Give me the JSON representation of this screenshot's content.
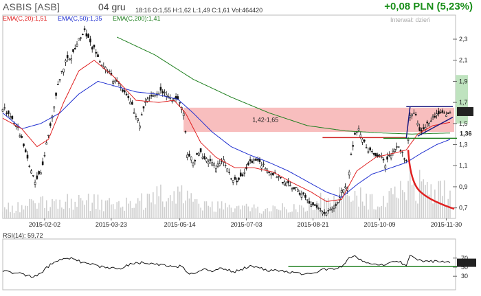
{
  "header": {
    "title": "ASBIS [ASB]",
    "date": "04 gru",
    "quote_line": "18:16  O:1,55  H:1,62  L:1,49  C:1,61  Vol:464420",
    "change": "+0,08 PLN (5,23%)",
    "interval": "Interwał: dzień"
  },
  "indicators": {
    "ema20": "EMA(C,20):1,51",
    "ema50": "EMA(C,50):1,35",
    "ema200": "EMA(C,200):1,41",
    "rsi": "RSI(14): 59,72"
  },
  "colors": {
    "ema20": "#e02020",
    "ema50": "#2030d0",
    "ema200": "#208020",
    "zone": "#f7b3b3",
    "candles": "#111111",
    "volume": "#cfcfcf",
    "up_change": "#1a8f1a"
  },
  "chart_data": [
    {
      "type": "candlestick",
      "price_ylim": [
        0.6,
        2.45
      ],
      "y_ticks": [
        0.7,
        0.9,
        1.1,
        1.3,
        1.5,
        1.7,
        1.9,
        2.1,
        2.3
      ],
      "y_tick_labels": [
        "0,7",
        "0,9",
        "1,1",
        "1,3",
        "1,5",
        "1,7",
        "1,9",
        "2,1",
        "2,3"
      ],
      "x_tick_labels": [
        "2015-02-02",
        "2015-03-23",
        "2015-05-14",
        "2015-07-03",
        "2015-08-21",
        "2015-10-09",
        "2015-11-30"
      ],
      "x_range_index": [
        0,
        235
      ],
      "x_tick_index": [
        22,
        57,
        93,
        128,
        163,
        198,
        233
      ],
      "close_anchors": [
        [
          0,
          1.65
        ],
        [
          3,
          1.6
        ],
        [
          8,
          1.45
        ],
        [
          12,
          1.25
        ],
        [
          15,
          1.05
        ],
        [
          17,
          0.95
        ],
        [
          20,
          1.05
        ],
        [
          23,
          1.3
        ],
        [
          26,
          1.55
        ],
        [
          29,
          1.85
        ],
        [
          31,
          1.98
        ],
        [
          33,
          2.1
        ],
        [
          36,
          2.12
        ],
        [
          39,
          2.25
        ],
        [
          41,
          2.32
        ],
        [
          43,
          2.38
        ],
        [
          46,
          2.25
        ],
        [
          49,
          2.18
        ],
        [
          52,
          2.05
        ],
        [
          55,
          2.0
        ],
        [
          58,
          1.92
        ],
        [
          61,
          1.88
        ],
        [
          64,
          1.8
        ],
        [
          67,
          1.72
        ],
        [
          70,
          1.55
        ],
        [
          72,
          1.5
        ],
        [
          74,
          1.65
        ],
        [
          78,
          1.78
        ],
        [
          82,
          1.8
        ],
        [
          86,
          1.78
        ],
        [
          89,
          1.72
        ],
        [
          91,
          1.75
        ],
        [
          93,
          1.7
        ],
        [
          95,
          1.6
        ],
        [
          97,
          1.2
        ],
        [
          100,
          1.15
        ],
        [
          104,
          1.22
        ],
        [
          108,
          1.15
        ],
        [
          112,
          1.08
        ],
        [
          116,
          1.15
        ],
        [
          120,
          1.0
        ],
        [
          123,
          0.95
        ],
        [
          127,
          1.05
        ],
        [
          130,
          1.12
        ],
        [
          134,
          1.15
        ],
        [
          138,
          1.08
        ],
        [
          142,
          1.02
        ],
        [
          146,
          0.98
        ],
        [
          150,
          0.92
        ],
        [
          154,
          0.88
        ],
        [
          158,
          0.82
        ],
        [
          162,
          0.74
        ],
        [
          166,
          0.68
        ],
        [
          169,
          0.64
        ],
        [
          172,
          0.68
        ],
        [
          175,
          0.72
        ],
        [
          178,
          0.85
        ],
        [
          181,
          0.9
        ],
        [
          183,
          1.2
        ],
        [
          185,
          1.38
        ],
        [
          187,
          1.45
        ],
        [
          189,
          1.35
        ],
        [
          192,
          1.25
        ],
        [
          195,
          1.2
        ],
        [
          198,
          1.18
        ],
        [
          201,
          1.12
        ],
        [
          204,
          1.2
        ],
        [
          207,
          1.28
        ],
        [
          210,
          1.22
        ],
        [
          212,
          1.15
        ],
        [
          214,
          1.58
        ],
        [
          216,
          1.62
        ],
        [
          218,
          1.5
        ],
        [
          220,
          1.4
        ],
        [
          222,
          1.48
        ],
        [
          225,
          1.55
        ],
        [
          228,
          1.58
        ],
        [
          231,
          1.6
        ],
        [
          233,
          1.58
        ],
        [
          235,
          1.61
        ]
      ],
      "ema20_anchors": [
        [
          0,
          1.55
        ],
        [
          10,
          1.45
        ],
        [
          18,
          1.28
        ],
        [
          24,
          1.35
        ],
        [
          32,
          1.7
        ],
        [
          40,
          2.0
        ],
        [
          48,
          2.1
        ],
        [
          58,
          1.95
        ],
        [
          70,
          1.72
        ],
        [
          82,
          1.7
        ],
        [
          90,
          1.72
        ],
        [
          96,
          1.6
        ],
        [
          104,
          1.32
        ],
        [
          112,
          1.18
        ],
        [
          122,
          1.08
        ],
        [
          132,
          1.08
        ],
        [
          142,
          1.04
        ],
        [
          152,
          0.94
        ],
        [
          162,
          0.85
        ],
        [
          170,
          0.76
        ],
        [
          178,
          0.78
        ],
        [
          186,
          1.05
        ],
        [
          196,
          1.18
        ],
        [
          206,
          1.22
        ],
        [
          212,
          1.25
        ],
        [
          218,
          1.4
        ],
        [
          226,
          1.48
        ],
        [
          235,
          1.51
        ]
      ],
      "ema50_anchors": [
        [
          0,
          1.6
        ],
        [
          10,
          1.45
        ],
        [
          20,
          1.5
        ],
        [
          30,
          1.6
        ],
        [
          40,
          1.78
        ],
        [
          50,
          1.9
        ],
        [
          60,
          1.85
        ],
        [
          70,
          1.8
        ],
        [
          80,
          1.78
        ],
        [
          92,
          1.73
        ],
        [
          100,
          1.6
        ],
        [
          110,
          1.42
        ],
        [
          120,
          1.28
        ],
        [
          130,
          1.2
        ],
        [
          140,
          1.13
        ],
        [
          150,
          1.05
        ],
        [
          160,
          0.95
        ],
        [
          170,
          0.85
        ],
        [
          178,
          0.8
        ],
        [
          186,
          0.92
        ],
        [
          194,
          1.02
        ],
        [
          204,
          1.08
        ],
        [
          212,
          1.13
        ],
        [
          220,
          1.22
        ],
        [
          228,
          1.3
        ],
        [
          235,
          1.35
        ]
      ],
      "ema200_anchors": [
        [
          60,
          2.32
        ],
        [
          80,
          2.15
        ],
        [
          100,
          1.92
        ],
        [
          120,
          1.75
        ],
        [
          140,
          1.6
        ],
        [
          160,
          1.48
        ],
        [
          180,
          1.43
        ],
        [
          200,
          1.41
        ],
        [
          215,
          1.4
        ],
        [
          235,
          1.41
        ]
      ],
      "annotations": {
        "zone_label": "1,42-1,65",
        "zone": [
          1.42,
          1.65
        ],
        "support_label": "1,36",
        "support": 1.36,
        "last_label": "1,61",
        "last": 1.61,
        "resistance": 1.66
      },
      "volume_anchors": [
        [
          0,
          0.25
        ],
        [
          20,
          0.35
        ],
        [
          40,
          0.45
        ],
        [
          60,
          0.3
        ],
        [
          80,
          0.5
        ],
        [
          93,
          0.65
        ],
        [
          100,
          0.35
        ],
        [
          120,
          0.25
        ],
        [
          140,
          0.2
        ],
        [
          160,
          0.3
        ],
        [
          170,
          0.45
        ],
        [
          184,
          0.6
        ],
        [
          200,
          0.35
        ],
        [
          214,
          0.85
        ],
        [
          235,
          0.55
        ]
      ]
    },
    {
      "type": "line",
      "title": "RSI(14): 59,72",
      "ylim": [
        0,
        100
      ],
      "y_ticks": [
        30,
        50,
        70
      ],
      "y_tick_labels": [
        "30",
        "50",
        "70"
      ],
      "last_label": "59,72",
      "rsi_anchors": [
        [
          0,
          42
        ],
        [
          6,
          38
        ],
        [
          10,
          36
        ],
        [
          14,
          30
        ],
        [
          18,
          29
        ],
        [
          22,
          45
        ],
        [
          26,
          58
        ],
        [
          30,
          65
        ],
        [
          34,
          70
        ],
        [
          38,
          68
        ],
        [
          42,
          60
        ],
        [
          46,
          57
        ],
        [
          50,
          52
        ],
        [
          54,
          48
        ],
        [
          58,
          50
        ],
        [
          62,
          46
        ],
        [
          66,
          55
        ],
        [
          70,
          58
        ],
        [
          74,
          60
        ],
        [
          78,
          57
        ],
        [
          82,
          55
        ],
        [
          86,
          52
        ],
        [
          90,
          50
        ],
        [
          94,
          52
        ],
        [
          98,
          32
        ],
        [
          102,
          40
        ],
        [
          106,
          45
        ],
        [
          110,
          42
        ],
        [
          114,
          48
        ],
        [
          118,
          44
        ],
        [
          122,
          40
        ],
        [
          126,
          46
        ],
        [
          130,
          52
        ],
        [
          134,
          48
        ],
        [
          138,
          45
        ],
        [
          142,
          42
        ],
        [
          146,
          44
        ],
        [
          150,
          40
        ],
        [
          154,
          38
        ],
        [
          158,
          35
        ],
        [
          162,
          36
        ],
        [
          166,
          42
        ],
        [
          170,
          45
        ],
        [
          174,
          48
        ],
        [
          178,
          52
        ],
        [
          182,
          70
        ],
        [
          185,
          74
        ],
        [
          188,
          66
        ],
        [
          192,
          60
        ],
        [
          196,
          58
        ],
        [
          200,
          55
        ],
        [
          204,
          60
        ],
        [
          208,
          62
        ],
        [
          212,
          55
        ],
        [
          214,
          76
        ],
        [
          216,
          72
        ],
        [
          219,
          65
        ],
        [
          222,
          62
        ],
        [
          226,
          63
        ],
        [
          230,
          61
        ],
        [
          235,
          59.72
        ]
      ]
    }
  ]
}
